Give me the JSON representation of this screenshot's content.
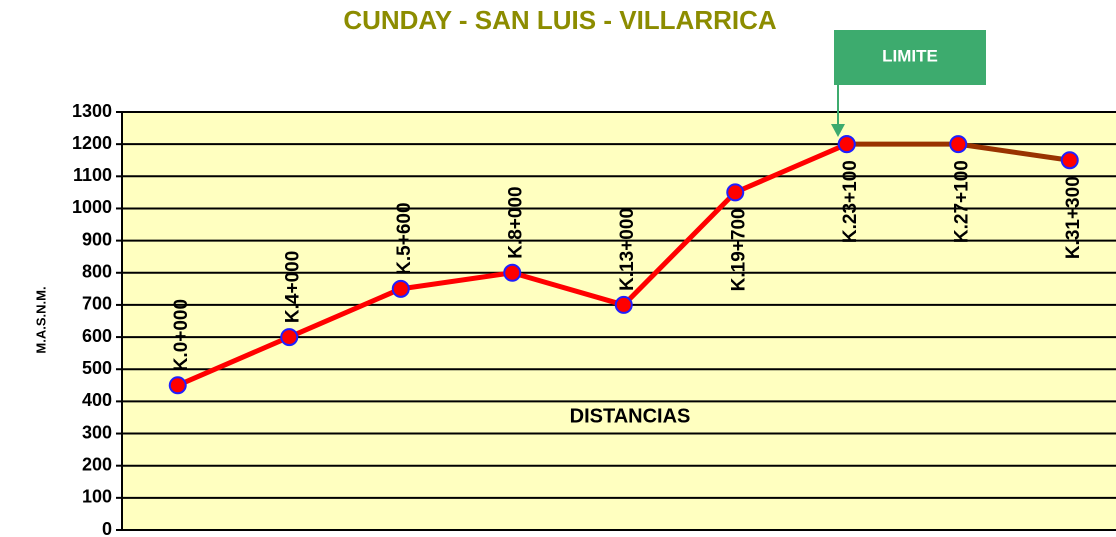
{
  "chart_data": {
    "type": "line",
    "title": "CUNDAY - SAN LUIS - VILLARRICA",
    "xlabel": "DISTANCIAS",
    "ylabel": "M.A.S.N.M.",
    "annotation": "LIMITE",
    "categories": [
      "K.0+000",
      "K.4+000",
      "K.5+600",
      "K.8+000",
      "K.13+000",
      "K.19+700",
      "K.23+100",
      "K.27+100",
      "K.31+300"
    ],
    "series": [
      {
        "color": "#ff0000",
        "values": [
          450,
          600,
          750,
          800,
          700,
          1050,
          1200,
          null,
          null
        ]
      },
      {
        "color": "#993300",
        "values": [
          null,
          null,
          null,
          null,
          null,
          null,
          1200,
          1200,
          1150
        ]
      }
    ],
    "marker_color": "#ff0000",
    "marker_edge": "#1f1fff",
    "ylim": [
      0,
      1300
    ],
    "yticks": [
      0,
      100,
      200,
      300,
      400,
      500,
      600,
      700,
      800,
      900,
      1000,
      1100,
      1200,
      1300
    ],
    "grid": true
  }
}
